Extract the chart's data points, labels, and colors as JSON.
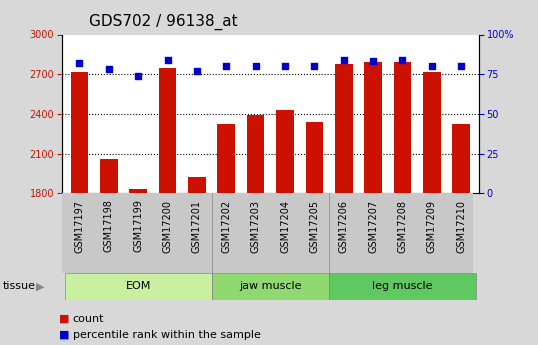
{
  "title": "GDS702 / 96138_at",
  "samples": [
    "GSM17197",
    "GSM17198",
    "GSM17199",
    "GSM17200",
    "GSM17201",
    "GSM17202",
    "GSM17203",
    "GSM17204",
    "GSM17205",
    "GSM17206",
    "GSM17207",
    "GSM17208",
    "GSM17209",
    "GSM17210"
  ],
  "counts": [
    2720,
    2055,
    1830,
    2745,
    1920,
    2320,
    2390,
    2430,
    2340,
    2780,
    2790,
    2790,
    2720,
    2320
  ],
  "percentiles": [
    82,
    78,
    74,
    84,
    77,
    80,
    80,
    80,
    80,
    84,
    83,
    84,
    80,
    80
  ],
  "groups": [
    {
      "label": "EOM",
      "start": 0,
      "end": 5,
      "color": "#c8f0a0"
    },
    {
      "label": "jaw muscle",
      "start": 5,
      "end": 9,
      "color": "#90d870"
    },
    {
      "label": "leg muscle",
      "start": 9,
      "end": 14,
      "color": "#60c860"
    }
  ],
  "ymin": 1800,
  "ymax": 3000,
  "y2min": 0,
  "y2max": 100,
  "yticks": [
    1800,
    2100,
    2400,
    2700,
    3000
  ],
  "y2ticks": [
    0,
    25,
    50,
    75,
    100
  ],
  "bar_color": "#cc1100",
  "dot_color": "#0000cc",
  "bg_color": "#d8d8d8",
  "plot_bg": "#ffffff",
  "xticklabel_bg": "#c8c8c8",
  "ylabel_color": "#cc1100",
  "y2label_color": "#0000cc",
  "legend_count_color": "#cc1100",
  "legend_pct_color": "#0000cc",
  "tissue_label": "tissue",
  "legend_count": "count",
  "legend_pct": "percentile rank within the sample",
  "bar_width": 0.6,
  "dotted_grid_lines": [
    2700,
    2400,
    2100
  ],
  "title_fontsize": 11,
  "tick_fontsize": 7,
  "label_fontsize": 8
}
